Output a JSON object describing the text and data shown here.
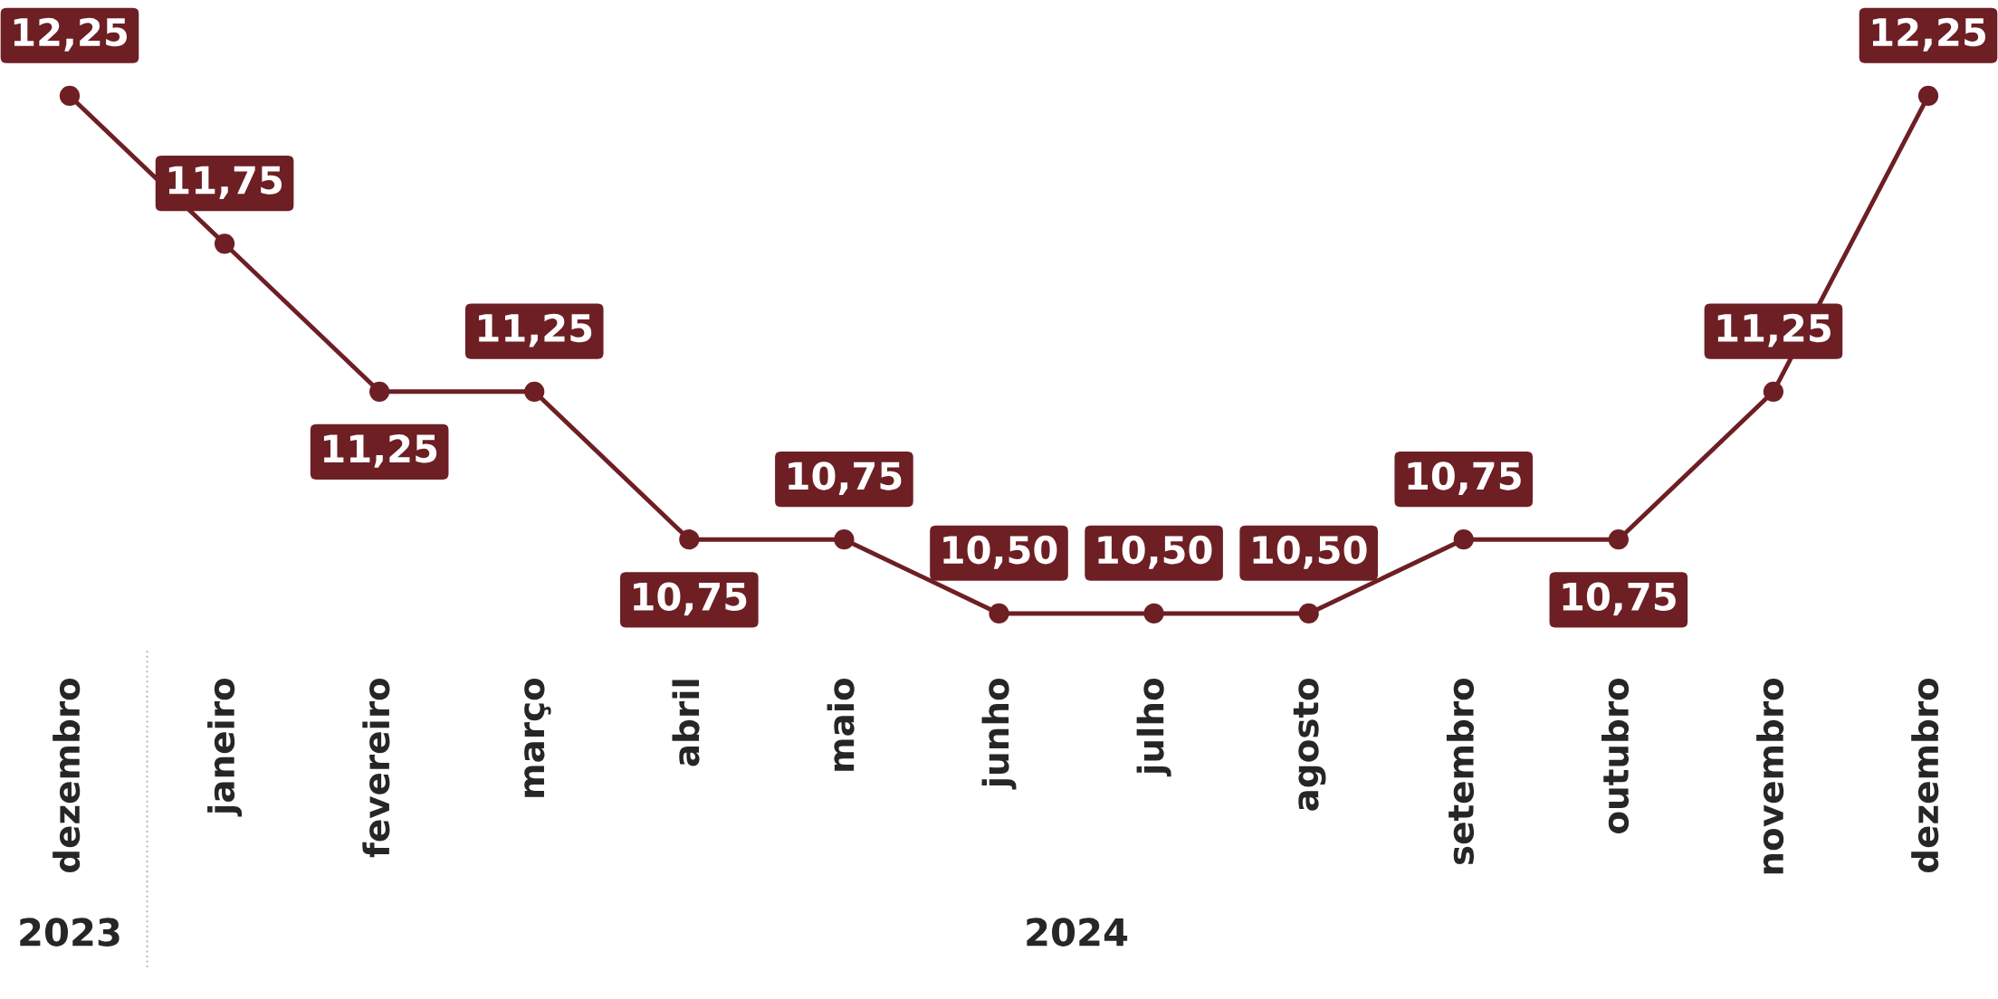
{
  "chart_data": {
    "type": "line",
    "categories": [
      "dezembro",
      "janeiro",
      "fevereiro",
      "março",
      "abril",
      "maio",
      "junho",
      "julho",
      "agosto",
      "setembro",
      "outubro",
      "novembro",
      "dezembro"
    ],
    "series": [
      {
        "color": "#6d1f24",
        "values": [
          12.25,
          11.75,
          11.25,
          11.25,
          10.75,
          10.75,
          10.5,
          10.5,
          10.5,
          10.75,
          10.75,
          11.25,
          12.25
        ],
        "value_labels": [
          "12,25",
          "11,75",
          "11,25",
          "11,25",
          "10,75",
          "10,75",
          "10,50",
          "10,50",
          "10,50",
          "10,75",
          "10,75",
          "11,25",
          "12,25"
        ]
      }
    ],
    "marker": "circle",
    "line_style": "solid",
    "grid": false,
    "annotations": [
      "2023",
      "2024"
    ]
  }
}
